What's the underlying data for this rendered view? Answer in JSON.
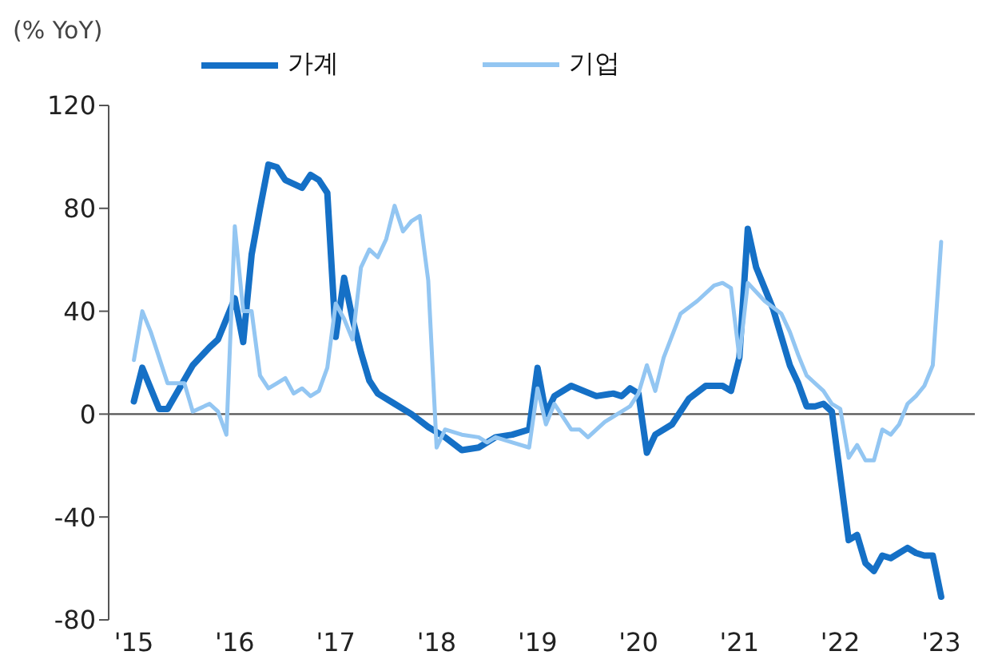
{
  "chart_data": {
    "type": "line",
    "ylabel": "(% YoY)",
    "legend": "top",
    "marker": "none",
    "line_style": "solid",
    "ref_lines": [
      {
        "axis": "y",
        "value": 0
      }
    ],
    "xlim": [
      "2014-10",
      "2023-05"
    ],
    "xticks": [
      {
        "value": "2015-01",
        "label": "'15"
      },
      {
        "value": "2016-01",
        "label": "'16"
      },
      {
        "value": "2017-01",
        "label": "'17"
      },
      {
        "value": "2018-01",
        "label": "'18"
      },
      {
        "value": "2019-01",
        "label": "'19"
      },
      {
        "value": "2020-01",
        "label": "'20"
      },
      {
        "value": "2021-01",
        "label": "'21"
      },
      {
        "value": "2022-01",
        "label": "'22"
      },
      {
        "value": "2023-01",
        "label": "'23"
      }
    ],
    "ylim": [
      -80,
      120
    ],
    "yticks": [
      -80,
      -40,
      0,
      40,
      80,
      120
    ],
    "series": [
      {
        "name": "가계",
        "color": "#1570c6",
        "x": [
          "2015-01",
          "2015-02",
          "2015-04",
          "2015-05",
          "2015-08",
          "2015-10",
          "2015-11",
          "2015-12",
          "2016-01",
          "2016-02",
          "2016-03",
          "2016-04",
          "2016-05",
          "2016-06",
          "2016-07",
          "2016-09",
          "2016-10",
          "2016-11",
          "2016-12",
          "2017-01",
          "2017-02",
          "2017-03",
          "2017-04",
          "2017-05",
          "2017-06",
          "2017-08",
          "2017-10",
          "2017-12",
          "2018-01",
          "2018-02",
          "2018-04",
          "2018-06",
          "2018-08",
          "2018-10",
          "2018-12",
          "2019-01",
          "2019-02",
          "2019-03",
          "2019-05",
          "2019-08",
          "2019-10",
          "2019-11",
          "2019-12",
          "2020-01",
          "2020-02",
          "2020-03",
          "2020-05",
          "2020-07",
          "2020-09",
          "2020-11",
          "2020-12",
          "2021-01",
          "2021-02",
          "2021-03",
          "2021-05",
          "2021-07",
          "2021-08",
          "2021-09",
          "2021-10",
          "2021-11",
          "2021-12",
          "2022-02",
          "2022-03",
          "2022-04",
          "2022-05",
          "2022-06",
          "2022-07",
          "2022-09",
          "2022-10",
          "2022-11",
          "2022-12",
          "2023-01"
        ],
        "values": [
          5,
          18,
          2,
          2,
          19,
          26,
          29,
          37,
          45,
          28,
          62,
          80,
          97,
          96,
          91,
          88,
          93,
          91,
          86,
          30,
          53,
          37,
          24,
          13,
          8,
          4,
          0,
          -5,
          -7,
          -9,
          -14,
          -13,
          -9,
          -8,
          -6,
          18,
          0,
          7,
          11,
          7,
          8,
          7,
          10,
          8,
          -15,
          -8,
          -4,
          6,
          11,
          11,
          9,
          22,
          72,
          57,
          41,
          19,
          12,
          3,
          3,
          4,
          1,
          -49,
          -47,
          -58,
          -61,
          -55,
          -56,
          -52,
          -54,
          -55,
          -55,
          -71
        ]
      },
      {
        "name": "기업",
        "color": "#93c6f2",
        "x": [
          "2015-01",
          "2015-02",
          "2015-03",
          "2015-05",
          "2015-07",
          "2015-08",
          "2015-10",
          "2015-11",
          "2015-12",
          "2016-01",
          "2016-02",
          "2016-03",
          "2016-04",
          "2016-05",
          "2016-06",
          "2016-07",
          "2016-08",
          "2016-09",
          "2016-10",
          "2016-11",
          "2016-12",
          "2017-01",
          "2017-02",
          "2017-03",
          "2017-04",
          "2017-05",
          "2017-06",
          "2017-07",
          "2017-08",
          "2017-09",
          "2017-10",
          "2017-11",
          "2017-12",
          "2018-01",
          "2018-02",
          "2018-04",
          "2018-06",
          "2018-07",
          "2018-08",
          "2018-10",
          "2018-12",
          "2019-01",
          "2019-02",
          "2019-03",
          "2019-05",
          "2019-06",
          "2019-07",
          "2019-09",
          "2019-11",
          "2019-12",
          "2020-01",
          "2020-02",
          "2020-03",
          "2020-04",
          "2020-06",
          "2020-08",
          "2020-10",
          "2020-11",
          "2020-12",
          "2021-01",
          "2021-02",
          "2021-04",
          "2021-06",
          "2021-07",
          "2021-08",
          "2021-09",
          "2021-11",
          "2021-12",
          "2022-01",
          "2022-02",
          "2022-03",
          "2022-04",
          "2022-05",
          "2022-06",
          "2022-07",
          "2022-08",
          "2022-09",
          "2022-10",
          "2022-11",
          "2022-12",
          "2023-01"
        ],
        "values": [
          21,
          40,
          32,
          12,
          12,
          1,
          4,
          1,
          -8,
          73,
          40,
          40,
          15,
          10,
          12,
          14,
          8,
          10,
          7,
          9,
          18,
          43,
          37,
          29,
          57,
          64,
          61,
          68,
          81,
          71,
          75,
          77,
          52,
          -13,
          -6,
          -8,
          -9,
          -11,
          -9,
          -11,
          -13,
          10,
          -4,
          4,
          -6,
          -6,
          -9,
          -3,
          1,
          3,
          8,
          19,
          9,
          22,
          39,
          44,
          50,
          51,
          49,
          22,
          51,
          44,
          39,
          32,
          23,
          15,
          9,
          4,
          2,
          -17,
          -12,
          -18,
          -18,
          -6,
          -8,
          -4,
          4,
          7,
          11,
          19,
          67
        ]
      }
    ]
  }
}
